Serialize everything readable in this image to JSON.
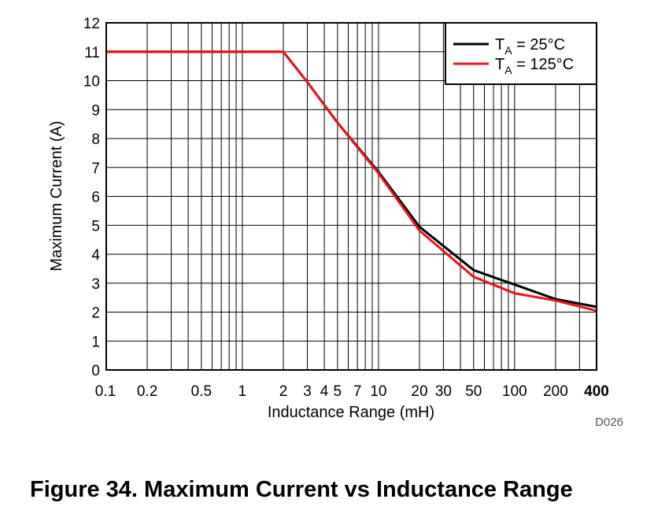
{
  "chart_data": {
    "type": "line",
    "title": "",
    "xlabel": "Inductance Range (mH)",
    "ylabel": "Maximum Current (A)",
    "x_scale": "log",
    "xlim": [
      0.1,
      400
    ],
    "ylim": [
      0,
      12
    ],
    "grid": true,
    "legend_position": "top-right",
    "x_ticks": [
      {
        "value": 0.1,
        "label": "0.1"
      },
      {
        "value": 0.2,
        "label": "0.2"
      },
      {
        "value": 0.5,
        "label": "0.5"
      },
      {
        "value": 1,
        "label": "1"
      },
      {
        "value": 2,
        "label": "2"
      },
      {
        "value": 3,
        "label": "3"
      },
      {
        "value": 4,
        "label": "4"
      },
      {
        "value": 5,
        "label": "5"
      },
      {
        "value": 7,
        "label": "7"
      },
      {
        "value": 10,
        "label": "10"
      },
      {
        "value": 20,
        "label": "20"
      },
      {
        "value": 30,
        "label": "30"
      },
      {
        "value": 50,
        "label": "50"
      },
      {
        "value": 100,
        "label": "100"
      },
      {
        "value": 200,
        "label": "200"
      },
      {
        "value": 400,
        "label": "400"
      }
    ],
    "y_ticks": [
      0,
      1,
      2,
      3,
      4,
      5,
      6,
      7,
      8,
      9,
      10,
      11,
      12
    ],
    "series": [
      {
        "name_main": "T",
        "name_sub": "A",
        "name_rest": " = 25°C",
        "color": "#000000",
        "x": [
          0.1,
          2,
          3,
          5,
          10,
          20,
          50,
          100,
          200,
          400
        ],
        "y": [
          11,
          11,
          9.95,
          8.55,
          6.85,
          4.95,
          3.45,
          2.95,
          2.45,
          2.18
        ]
      },
      {
        "name_main": "T",
        "name_sub": "A",
        "name_rest": " = 125°C",
        "color": "#e8141b",
        "x": [
          0.1,
          2,
          3,
          5,
          10,
          20,
          50,
          100,
          200,
          400
        ],
        "y": [
          11,
          11,
          9.95,
          8.55,
          6.8,
          4.82,
          3.22,
          2.65,
          2.4,
          2.05
        ]
      }
    ]
  },
  "footer_code": "D026",
  "caption": "Figure 34. Maximum Current vs Inductance Range"
}
